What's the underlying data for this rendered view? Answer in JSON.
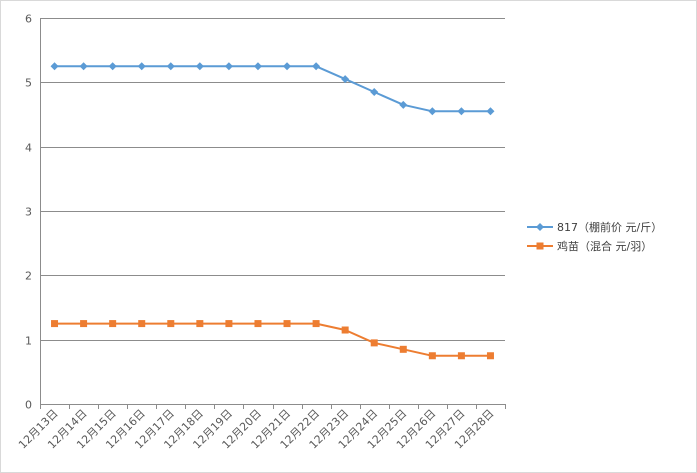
{
  "chart_data": {
    "type": "line",
    "title": "",
    "xlabel": "",
    "ylabel": "",
    "ylim": [
      0,
      6
    ],
    "yticks": [
      0,
      1,
      2,
      3,
      4,
      5,
      6
    ],
    "grid": true,
    "legend_position": "right",
    "categories": [
      "12月13日",
      "12月14日",
      "12月15日",
      "12月16日",
      "12月17日",
      "12月18日",
      "12月19日",
      "12月20日",
      "12月21日",
      "12月22日",
      "12月23日",
      "12月24日",
      "12月25日",
      "12月26日",
      "12月27日",
      "12月28日"
    ],
    "series": [
      {
        "name": "817（棚前价 元/斤）",
        "color": "#5b9bd5",
        "marker": "diamond",
        "values": [
          5.25,
          5.25,
          5.25,
          5.25,
          5.25,
          5.25,
          5.25,
          5.25,
          5.25,
          5.25,
          5.05,
          4.85,
          4.65,
          4.55,
          4.55,
          4.55
        ]
      },
      {
        "name": "鸡苗（混合 元/羽）",
        "color": "#ed7d31",
        "marker": "square",
        "values": [
          1.25,
          1.25,
          1.25,
          1.25,
          1.25,
          1.25,
          1.25,
          1.25,
          1.25,
          1.25,
          1.15,
          0.95,
          0.85,
          0.75,
          0.75,
          0.75
        ]
      }
    ]
  }
}
